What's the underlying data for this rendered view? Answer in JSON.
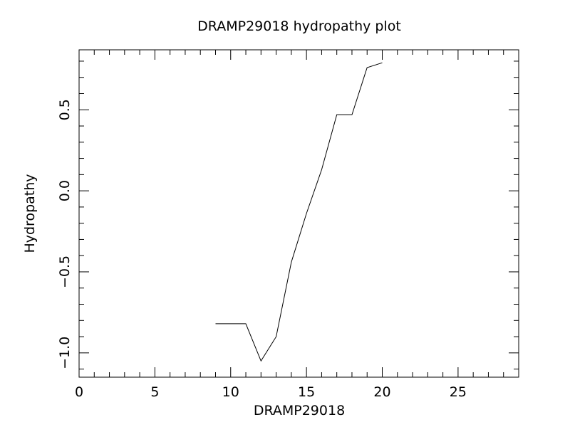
{
  "chart_data": {
    "type": "line",
    "title": "DRAMP29018 hydropathy plot",
    "xlabel": "DRAMP29018",
    "ylabel": "Hydropathy",
    "xlim": [
      0,
      29
    ],
    "ylim": [
      -1.15,
      0.87
    ],
    "x_ticks": [
      0,
      5,
      10,
      15,
      20,
      25
    ],
    "x_tick_labels": [
      "0",
      "5",
      "10",
      "15",
      "20",
      "25"
    ],
    "y_ticks": [
      -1.0,
      -0.5,
      0.0,
      0.5
    ],
    "y_tick_labels": [
      "−1.0",
      "−0.5",
      "0.0",
      "0.5"
    ],
    "grid": false,
    "series": [
      {
        "x": [
          9,
          10,
          11,
          12,
          13,
          14,
          15,
          16,
          17,
          18,
          19,
          20
        ],
        "y": [
          -0.82,
          -0.82,
          -0.82,
          -1.05,
          -0.9,
          -0.44,
          -0.14,
          0.13,
          0.47,
          0.47,
          0.76,
          0.79
        ],
        "color": "#000000"
      }
    ]
  }
}
